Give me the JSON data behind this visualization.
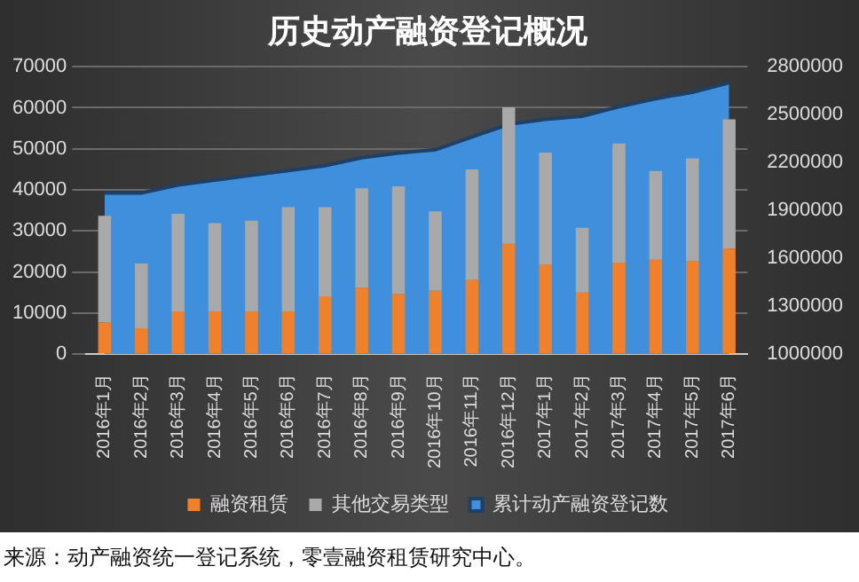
{
  "chart_data": {
    "type": "bar",
    "title": "历史动产融资登记概况",
    "categories": [
      "2016年1月",
      "2016年2月",
      "2016年3月",
      "2016年4月",
      "2016年5月",
      "2016年6月",
      "2016年7月",
      "2016年8月",
      "2016年9月",
      "2016年10月",
      "2016年11月",
      "2016年12月",
      "2017年1月",
      "2017年2月",
      "2017年3月",
      "2017年4月",
      "2017年5月",
      "2017年6月"
    ],
    "series": [
      {
        "name": "累计动产融资登记数",
        "type": "area",
        "axis": "y2",
        "color": "#3f8fdc",
        "values": [
          2010000,
          2010000,
          2060000,
          2090000,
          2120000,
          2150000,
          2180000,
          2230000,
          2260000,
          2280000,
          2360000,
          2440000,
          2470000,
          2490000,
          2550000,
          2600000,
          2640000,
          2700000
        ]
      },
      {
        "name": "融资租赁",
        "color": "#f0812c",
        "values": [
          7700,
          6300,
          10400,
          10400,
          10400,
          10400,
          14100,
          16200,
          14700,
          15500,
          18100,
          26900,
          21800,
          15000,
          22300,
          23000,
          22700,
          25700
        ]
      },
      {
        "name": "其他交易类型",
        "color": "#a9a9a9",
        "values": [
          26000,
          15800,
          23800,
          21500,
          22100,
          25400,
          21700,
          24200,
          26200,
          19300,
          26900,
          33200,
          27300,
          15800,
          29000,
          21600,
          25000,
          31500
        ]
      }
    ],
    "stacked": true,
    "ylim": [
      0,
      70000
    ],
    "yticks": [
      0,
      10000,
      20000,
      30000,
      40000,
      50000,
      60000,
      70000
    ],
    "y2lim": [
      1000000,
      2800000
    ],
    "y2ticks": [
      1000000,
      1300000,
      1600000,
      1900000,
      2200000,
      2500000,
      2800000
    ],
    "grid": "y",
    "legend": "bottom",
    "annotations": [
      "来源：动产融资统一登记系统，零壹融资租赁研究中心。"
    ]
  }
}
